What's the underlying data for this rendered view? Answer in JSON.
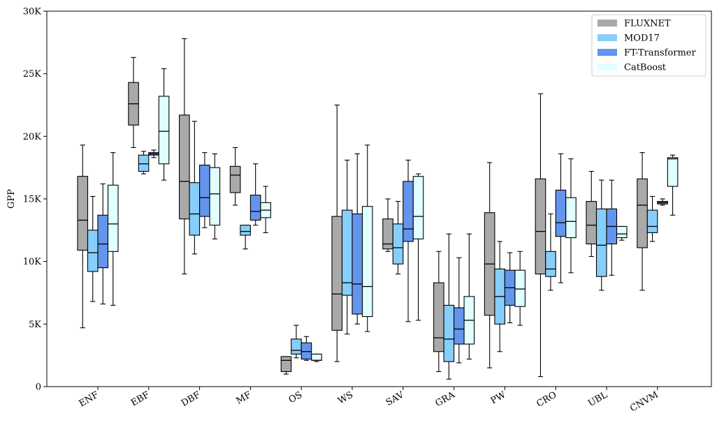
{
  "chart_data": {
    "type": "box",
    "ylabel": "GPP",
    "ylim": [
      0,
      30000
    ],
    "yticks": [
      0,
      5000,
      10000,
      15000,
      20000,
      25000,
      30000
    ],
    "ytick_labels": [
      "0",
      "5K",
      "10K",
      "15K",
      "20K",
      "25K",
      "30K"
    ],
    "categories": [
      "ENF",
      "EBF",
      "DBF",
      "MF",
      "OS",
      "WS",
      "SAV",
      "GRA",
      "PW",
      "CRO",
      "UBL",
      "CNVM"
    ],
    "legend": {
      "placement": "top-right"
    },
    "series": [
      {
        "name": "FLUXNET",
        "color": "#a9a9a9",
        "boxes": [
          {
            "whislo": 4700,
            "q1": 10900,
            "med": 13300,
            "q3": 16800,
            "whishi": 19300
          },
          {
            "whislo": 19100,
            "q1": 20900,
            "med": 22600,
            "q3": 24300,
            "whishi": 26300
          },
          {
            "whislo": 9000,
            "q1": 13400,
            "med": 16400,
            "q3": 21700,
            "whishi": 27800
          },
          {
            "whislo": 14500,
            "q1": 15500,
            "med": 16900,
            "q3": 17600,
            "whishi": 19100
          },
          {
            "whislo": 1000,
            "q1": 1200,
            "med": 2100,
            "q3": 2400,
            "whishi": 2400
          },
          {
            "whislo": 2000,
            "q1": 4500,
            "med": 7400,
            "q3": 13600,
            "whishi": 22500
          },
          {
            "whislo": 10800,
            "q1": 11000,
            "med": 11400,
            "q3": 13400,
            "whishi": 15000
          },
          {
            "whislo": 1200,
            "q1": 2800,
            "med": 3900,
            "q3": 8300,
            "whishi": 10800
          },
          {
            "whislo": 1500,
            "q1": 5700,
            "med": 9800,
            "q3": 13900,
            "whishi": 17900
          },
          {
            "whislo": 800,
            "q1": 9000,
            "med": 12400,
            "q3": 16600,
            "whishi": 23400
          },
          {
            "whislo": 10400,
            "q1": 11400,
            "med": 12900,
            "q3": 14800,
            "whishi": 17200
          },
          {
            "whislo": 7700,
            "q1": 11100,
            "med": 14500,
            "q3": 16600,
            "whishi": 18700
          }
        ]
      },
      {
        "name": "MOD17",
        "color": "#87cefa",
        "boxes": [
          {
            "whislo": 6800,
            "q1": 9200,
            "med": 10700,
            "q3": 12500,
            "whishi": 15200
          },
          {
            "whislo": 17000,
            "q1": 17200,
            "med": 17800,
            "q3": 18500,
            "whishi": 18800
          },
          {
            "whislo": 10600,
            "q1": 12100,
            "med": 13800,
            "q3": 16300,
            "whishi": 21200
          },
          {
            "whislo": 11000,
            "q1": 12100,
            "med": 12400,
            "q3": 12900,
            "whishi": 12900
          },
          {
            "whislo": 2300,
            "q1": 2600,
            "med": 2900,
            "q3": 3800,
            "whishi": 4900
          },
          {
            "whislo": 4200,
            "q1": 7300,
            "med": 8300,
            "q3": 14100,
            "whishi": 18100
          },
          {
            "whislo": 9000,
            "q1": 9800,
            "med": 11100,
            "q3": 13000,
            "whishi": 14800
          },
          {
            "whislo": 600,
            "q1": 2000,
            "med": 3800,
            "q3": 6500,
            "whishi": 12200
          },
          {
            "whislo": 2800,
            "q1": 5000,
            "med": 7200,
            "q3": 9400,
            "whishi": 11600
          },
          {
            "whislo": 7700,
            "q1": 8800,
            "med": 9400,
            "q3": 10800,
            "whishi": 13800
          },
          {
            "whislo": 7700,
            "q1": 8800,
            "med": 11300,
            "q3": 14200,
            "whishi": 16500
          },
          {
            "whislo": 11600,
            "q1": 12300,
            "med": 12800,
            "q3": 14100,
            "whishi": 15200
          }
        ]
      },
      {
        "name": "FT-Transformer",
        "color": "#6495ed",
        "boxes": [
          {
            "whislo": 6600,
            "q1": 9500,
            "med": 11400,
            "q3": 13700,
            "whishi": 16200
          },
          {
            "whislo": 18300,
            "q1": 18500,
            "med": 18600,
            "q3": 18700,
            "whishi": 18900
          },
          {
            "whislo": 12700,
            "q1": 13600,
            "med": 15100,
            "q3": 17700,
            "whishi": 18700
          },
          {
            "whislo": 12900,
            "q1": 13300,
            "med": 14000,
            "q3": 15300,
            "whishi": 17800
          },
          {
            "whislo": 2100,
            "q1": 2200,
            "med": 2800,
            "q3": 3500,
            "whishi": 4000
          },
          {
            "whislo": 5000,
            "q1": 5800,
            "med": 8200,
            "q3": 13800,
            "whishi": 18600
          },
          {
            "whislo": 5200,
            "q1": 11600,
            "med": 12600,
            "q3": 16400,
            "whishi": 18100
          },
          {
            "whislo": 1900,
            "q1": 3400,
            "med": 4600,
            "q3": 6300,
            "whishi": 10300
          },
          {
            "whislo": 5100,
            "q1": 6500,
            "med": 7900,
            "q3": 9300,
            "whishi": 10700
          },
          {
            "whislo": 8300,
            "q1": 12000,
            "med": 13100,
            "q3": 15700,
            "whishi": 18600
          },
          {
            "whislo": 8900,
            "q1": 11400,
            "med": 12800,
            "q3": 14200,
            "whishi": 16500
          },
          {
            "whislo": 14500,
            "q1": 14600,
            "med": 14700,
            "q3": 14800,
            "whishi": 15000
          }
        ]
      },
      {
        "name": "CatBoost",
        "color": "#e0ffff",
        "boxes": [
          {
            "whislo": 6500,
            "q1": 10800,
            "med": 13000,
            "q3": 16100,
            "whishi": 18700
          },
          {
            "whislo": 16500,
            "q1": 17800,
            "med": 20400,
            "q3": 23200,
            "whishi": 25400
          },
          {
            "whislo": 11800,
            "q1": 12900,
            "med": 15400,
            "q3": 17500,
            "whishi": 18600
          },
          {
            "whislo": 12300,
            "q1": 13500,
            "med": 14100,
            "q3": 14700,
            "whishi": 16000
          },
          {
            "whislo": 2000,
            "q1": 2100,
            "med": 2100,
            "q3": 2600,
            "whishi": 2600
          },
          {
            "whislo": 4400,
            "q1": 5600,
            "med": 8000,
            "q3": 14400,
            "whishi": 19300
          },
          {
            "whislo": 5300,
            "q1": 11800,
            "med": 13600,
            "q3": 16800,
            "whishi": 17000
          },
          {
            "whislo": 2200,
            "q1": 3400,
            "med": 5300,
            "q3": 7200,
            "whishi": 12200
          },
          {
            "whislo": 4900,
            "q1": 6400,
            "med": 7800,
            "q3": 9300,
            "whishi": 10800
          },
          {
            "whislo": 9100,
            "q1": 11900,
            "med": 13200,
            "q3": 15100,
            "whishi": 18200
          },
          {
            "whislo": 11700,
            "q1": 11900,
            "med": 12200,
            "q3": 12800,
            "whishi": 12800
          },
          {
            "whislo": 13700,
            "q1": 16000,
            "med": 18200,
            "q3": 18300,
            "whishi": 18500
          }
        ]
      }
    ]
  }
}
